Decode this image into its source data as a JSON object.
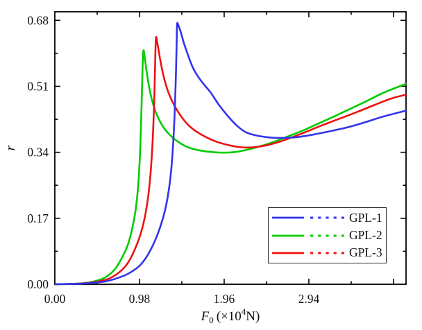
{
  "chart_data": {
    "type": "line",
    "title": "",
    "ylabel": "r",
    "xlabel_plain": "F0 (×10^4 N)",
    "xlabel_parts": {
      "var": "F",
      "sub": "0",
      "mid": "(×10",
      "sup": "4",
      "end": "N)"
    },
    "xlim": [
      0,
      4.065
    ],
    "ylim": [
      0,
      0.702
    ],
    "x_major_ticks": [
      0.98,
      1.96,
      2.94,
      3.92
    ],
    "x_minor_ticks": [
      0.49,
      1.47,
      2.45,
      3.43
    ],
    "y_major_ticks": [
      0.17,
      0.34,
      0.51,
      0.68
    ],
    "y_minor_ticks": [
      0.085,
      0.255,
      0.425,
      0.595
    ],
    "x_tick_labels": [
      {
        "value": 0,
        "label": "0.00"
      },
      {
        "value": 0.98,
        "label": "0.98"
      },
      {
        "value": 1.96,
        "label": "1.96"
      },
      {
        "value": 2.94,
        "label": "2.94"
      }
    ],
    "y_tick_labels": [
      {
        "value": 0,
        "label": "0.00"
      },
      {
        "value": 0.17,
        "label": "0.17"
      },
      {
        "value": 0.34,
        "label": "0.34"
      },
      {
        "value": 0.51,
        "label": "0.51"
      },
      {
        "value": 0.68,
        "label": "0.68"
      }
    ],
    "grid": false,
    "legend": {
      "position": "lower-right",
      "border": true
    },
    "axis_color": "#000000",
    "series": [
      {
        "name": "GPL-1",
        "color": "#3333ee",
        "legend_styles": [
          "solid",
          "dotted"
        ],
        "peak": {
          "x": 1.41,
          "r": 0.67
        },
        "points": [
          [
            0,
            0
          ],
          [
            0.2,
            0.001
          ],
          [
            0.4,
            0.003
          ],
          [
            0.6,
            0.008
          ],
          [
            0.8,
            0.022
          ],
          [
            0.9,
            0.034
          ],
          [
            1.0,
            0.052
          ],
          [
            1.1,
            0.085
          ],
          [
            1.2,
            0.135
          ],
          [
            1.28,
            0.195
          ],
          [
            1.33,
            0.26
          ],
          [
            1.36,
            0.33
          ],
          [
            1.385,
            0.43
          ],
          [
            1.4,
            0.53
          ],
          [
            1.41,
            0.62
          ],
          [
            1.415,
            0.67
          ],
          [
            1.43,
            0.667
          ],
          [
            1.46,
            0.648
          ],
          [
            1.5,
            0.617
          ],
          [
            1.6,
            0.557
          ],
          [
            1.7,
            0.522
          ],
          [
            1.8,
            0.495
          ],
          [
            1.9,
            0.462
          ],
          [
            2.0,
            0.434
          ],
          [
            2.1,
            0.41
          ],
          [
            2.2,
            0.393
          ],
          [
            2.3,
            0.385
          ],
          [
            2.45,
            0.379
          ],
          [
            2.6,
            0.377
          ],
          [
            2.8,
            0.379
          ],
          [
            3.0,
            0.386
          ],
          [
            3.2,
            0.395
          ],
          [
            3.4,
            0.405
          ],
          [
            3.6,
            0.418
          ],
          [
            3.8,
            0.432
          ],
          [
            4.06,
            0.447
          ]
        ]
      },
      {
        "name": "GPL-2",
        "color": "#00cc00",
        "legend_styles": [
          "solid",
          "dotted"
        ],
        "peak": {
          "x": 1.03,
          "r": 0.602
        },
        "points": [
          [
            0,
            0
          ],
          [
            0.2,
            0.001
          ],
          [
            0.35,
            0.003
          ],
          [
            0.5,
            0.01
          ],
          [
            0.6,
            0.02
          ],
          [
            0.7,
            0.04
          ],
          [
            0.8,
            0.078
          ],
          [
            0.85,
            0.105
          ],
          [
            0.9,
            0.148
          ],
          [
            0.94,
            0.2
          ],
          [
            0.97,
            0.27
          ],
          [
            0.99,
            0.36
          ],
          [
            1.005,
            0.47
          ],
          [
            1.015,
            0.555
          ],
          [
            1.025,
            0.602
          ],
          [
            1.04,
            0.585
          ],
          [
            1.06,
            0.552
          ],
          [
            1.09,
            0.51
          ],
          [
            1.13,
            0.47
          ],
          [
            1.18,
            0.437
          ],
          [
            1.25,
            0.407
          ],
          [
            1.33,
            0.385
          ],
          [
            1.42,
            0.368
          ],
          [
            1.52,
            0.355
          ],
          [
            1.65,
            0.346
          ],
          [
            1.8,
            0.341
          ],
          [
            1.95,
            0.339
          ],
          [
            2.1,
            0.341
          ],
          [
            2.25,
            0.348
          ],
          [
            2.4,
            0.357
          ],
          [
            2.55,
            0.368
          ],
          [
            2.7,
            0.381
          ],
          [
            2.85,
            0.394
          ],
          [
            3.0,
            0.409
          ],
          [
            3.2,
            0.429
          ],
          [
            3.4,
            0.45
          ],
          [
            3.6,
            0.471
          ],
          [
            3.8,
            0.493
          ],
          [
            4.06,
            0.516
          ]
        ]
      },
      {
        "name": "GPL-3",
        "color": "#ee1111",
        "legend_styles": [
          "solid",
          "dotted"
        ],
        "peak": {
          "x": 1.17,
          "r": 0.634
        },
        "points": [
          [
            0,
            0
          ],
          [
            0.3,
            0.002
          ],
          [
            0.5,
            0.007
          ],
          [
            0.65,
            0.017
          ],
          [
            0.8,
            0.042
          ],
          [
            0.9,
            0.077
          ],
          [
            1.0,
            0.135
          ],
          [
            1.06,
            0.195
          ],
          [
            1.1,
            0.265
          ],
          [
            1.13,
            0.36
          ],
          [
            1.15,
            0.47
          ],
          [
            1.16,
            0.555
          ],
          [
            1.17,
            0.634
          ],
          [
            1.19,
            0.617
          ],
          [
            1.22,
            0.578
          ],
          [
            1.26,
            0.535
          ],
          [
            1.31,
            0.497
          ],
          [
            1.38,
            0.462
          ],
          [
            1.47,
            0.43
          ],
          [
            1.57,
            0.405
          ],
          [
            1.7,
            0.385
          ],
          [
            1.85,
            0.369
          ],
          [
            2.0,
            0.359
          ],
          [
            2.15,
            0.353
          ],
          [
            2.3,
            0.353
          ],
          [
            2.45,
            0.358
          ],
          [
            2.6,
            0.367
          ],
          [
            2.75,
            0.379
          ],
          [
            2.9,
            0.392
          ],
          [
            3.1,
            0.41
          ],
          [
            3.3,
            0.427
          ],
          [
            3.5,
            0.444
          ],
          [
            3.7,
            0.462
          ],
          [
            3.9,
            0.479
          ],
          [
            4.06,
            0.488
          ]
        ]
      }
    ]
  }
}
